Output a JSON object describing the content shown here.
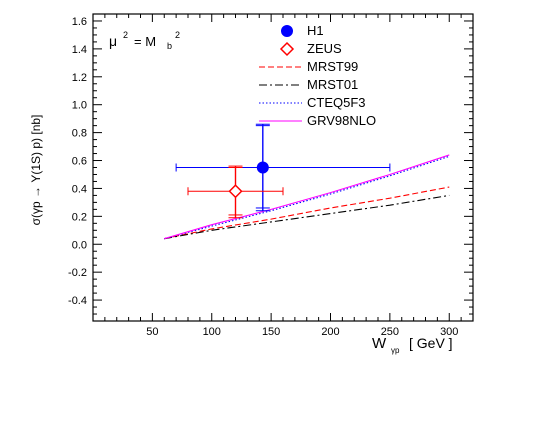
{
  "chart_data": {
    "type": "line",
    "xlabel": "W",
    "xlabel_sub": "γp",
    "xlabel_unit": "[ GeV ]",
    "ylabel": "σ(γp → Υ(1S) p) [nb]",
    "xlim": [
      0,
      320
    ],
    "ylim": [
      -0.55,
      1.65
    ],
    "xticks": [
      50,
      100,
      150,
      200,
      250,
      300
    ],
    "yticks": [
      -0.4,
      -0.2,
      0.0,
      0.2,
      0.4,
      0.6,
      0.8,
      1.0,
      1.2,
      1.4,
      1.6
    ],
    "ytick_labels": [
      "-0.4",
      "-0.2",
      "0.0",
      "0.2",
      "0.4",
      "0.6",
      "0.8",
      "1.0",
      "1.2",
      "1.4",
      "1.6"
    ],
    "annotation": "μ² = M_b²",
    "annotation_parts": {
      "mu": "μ",
      "sup1": "2",
      "eq": "= M",
      "sub": "b",
      "sup2": "2"
    },
    "grid": false,
    "legend_position": "top-right",
    "data_series": [
      {
        "name": "H1",
        "marker": "filled-circle",
        "color": "#0000ff",
        "x": 143,
        "y": 0.55,
        "xerr": [
          70,
          250
        ],
        "yerr_stat": [
          0.26,
          0.85
        ],
        "yerr_tot": [
          0.24,
          0.86
        ]
      },
      {
        "name": "ZEUS",
        "marker": "open-diamond",
        "color": "#ff0000",
        "x": 120,
        "y": 0.38,
        "xerr": [
          80,
          160
        ],
        "yerr_stat": [
          0.21,
          0.55
        ],
        "yerr_tot": [
          0.19,
          0.56
        ]
      }
    ],
    "series": [
      {
        "name": "MRST99",
        "color": "#ff0000",
        "style": "dashed",
        "x": [
          60,
          100,
          150,
          200,
          250,
          300
        ],
        "y": [
          0.04,
          0.11,
          0.18,
          0.26,
          0.33,
          0.41
        ]
      },
      {
        "name": "MRST01",
        "color": "#000000",
        "style": "dash-dot",
        "x": [
          60,
          100,
          150,
          200,
          250,
          300
        ],
        "y": [
          0.04,
          0.1,
          0.16,
          0.22,
          0.28,
          0.35
        ]
      },
      {
        "name": "CTEQ5F3",
        "color": "#0000ff",
        "style": "dotted",
        "x": [
          60,
          100,
          150,
          200,
          250,
          300
        ],
        "y": [
          0.04,
          0.13,
          0.24,
          0.36,
          0.49,
          0.63
        ]
      },
      {
        "name": "GRV98NLO",
        "color": "#ff00ff",
        "style": "solid",
        "x": [
          60,
          100,
          150,
          200,
          250,
          300
        ],
        "y": [
          0.04,
          0.14,
          0.25,
          0.37,
          0.5,
          0.64
        ]
      }
    ]
  }
}
